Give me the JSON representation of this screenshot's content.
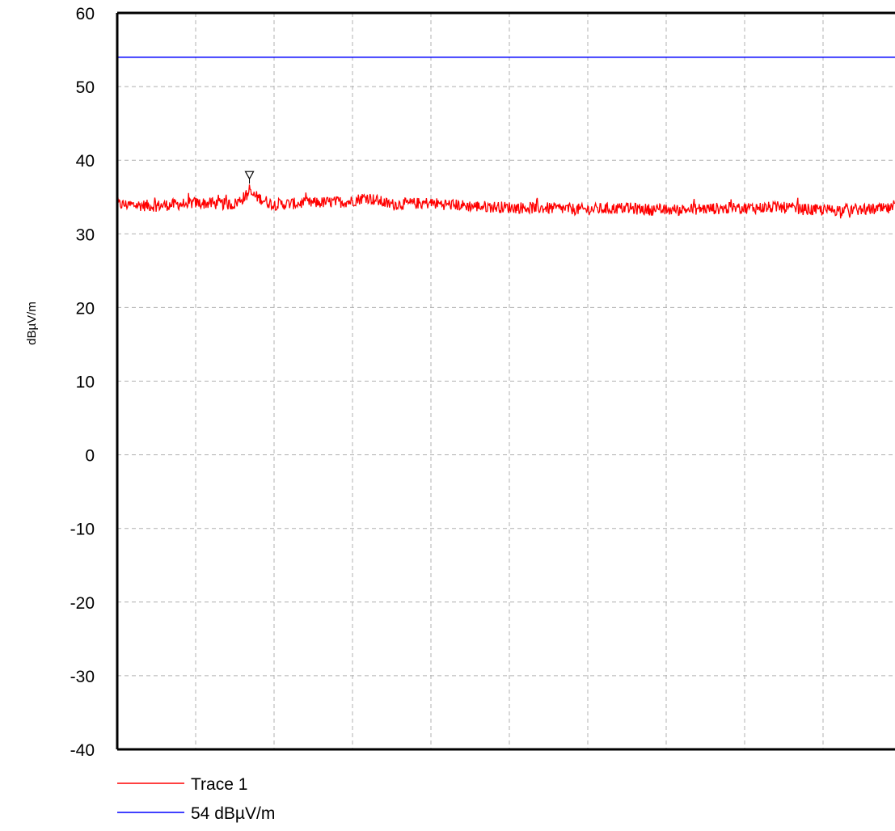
{
  "chart_data": {
    "type": "line",
    "title": "",
    "xlabel": "",
    "ylabel": "dBµV/m",
    "ylim": [
      -40,
      60
    ],
    "yticks": [
      "60",
      "50",
      "40",
      "30",
      "20",
      "10",
      "0",
      "-10",
      "-20",
      "-30",
      "-40"
    ],
    "grid": true,
    "legend_position": "bottom-left",
    "series": [
      {
        "name": "Trace 1",
        "color": "#ff0000",
        "x": [
          0,
          0.05,
          0.1,
          0.15,
          0.17,
          0.2,
          0.25,
          0.3,
          0.32,
          0.35,
          0.4,
          0.45,
          0.5,
          0.55,
          0.6,
          0.65,
          0.7,
          0.75,
          0.8,
          0.85,
          0.9,
          0.95,
          1
        ],
        "values": [
          34,
          33.8,
          34.2,
          34,
          35.5,
          34,
          34.2,
          34.4,
          35,
          34,
          34.2,
          33.8,
          33.6,
          33.5,
          33.3,
          33.5,
          33.2,
          33.4,
          33.5,
          33.6,
          33.2,
          33.3,
          33.4
        ]
      },
      {
        "name": "54 dBµV/m",
        "color": "#0000ff",
        "x": [
          0,
          1
        ],
        "values": [
          54,
          54
        ]
      }
    ],
    "marker": {
      "series": "Trace 1",
      "x": 0.17,
      "y": 35.5,
      "symbol": "triangle-down"
    }
  }
}
